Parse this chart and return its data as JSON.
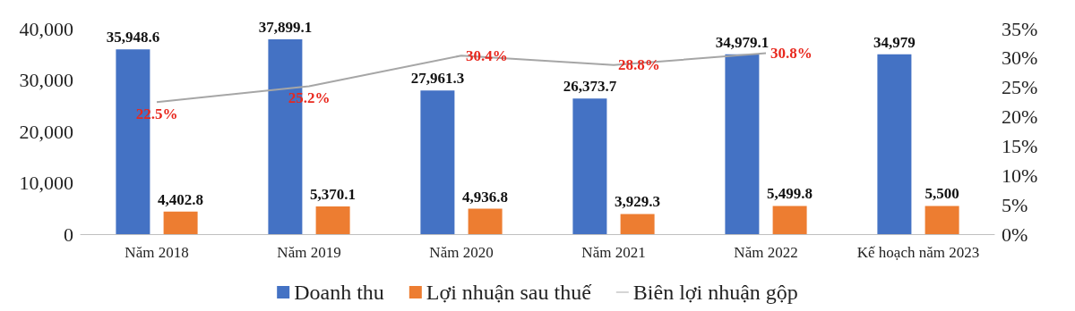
{
  "chart_data": {
    "type": "bar",
    "categories": [
      "Năm 2018",
      "Năm 2019",
      "Năm 2020",
      "Năm 2021",
      "Năm 2022",
      "Kế hoạch năm 2023"
    ],
    "series": [
      {
        "name": "Doanh thu",
        "color": "#4472c4",
        "values": [
          35948.6,
          37899.1,
          27961.3,
          26373.7,
          34979.1,
          34979
        ],
        "value_labels": [
          "35,948.6",
          "37,899.1",
          "27,961.3",
          "26,373.7",
          "34,979.1",
          "34,979"
        ]
      },
      {
        "name": "Lợi nhuận sau thuế",
        "color": "#ed7d31",
        "values": [
          4402.8,
          5370.1,
          4936.8,
          3929.3,
          5499.8,
          5500
        ],
        "value_labels": [
          "4,402.8",
          "5,370.1",
          "4,936.8",
          "3,929.3",
          "5,499.8",
          "5,500"
        ]
      },
      {
        "name": "Biên lợi nhuận gộp",
        "type": "line",
        "axis": "y2",
        "color": "#a6a6a6",
        "values": [
          22.5,
          25.2,
          30.4,
          28.8,
          30.8,
          null
        ],
        "value_labels": [
          "22.5%",
          "25.2%",
          "30.4%",
          "28.8%",
          "30.8%",
          null
        ]
      }
    ],
    "ylim": [
      0,
      40000
    ],
    "yticks": [
      0,
      {
        "value": 10000,
        "label": "10,000"
      },
      {
        "value": 20000,
        "label": "20,000"
      },
      {
        "value": 30000,
        "label": "30,000"
      },
      {
        "value": 40000,
        "label": "40,000"
      }
    ],
    "y2lim": [
      0,
      35
    ],
    "y2ticks": [
      {
        "value": 0,
        "label": "0%"
      },
      {
        "value": 5,
        "label": "5%"
      },
      {
        "value": 10,
        "label": "10%"
      },
      {
        "value": 15,
        "label": "15%"
      },
      {
        "value": 20,
        "label": "20%"
      },
      {
        "value": 25,
        "label": "25%"
      },
      {
        "value": 30,
        "label": "30%"
      },
      {
        "value": 35,
        "label": "35%"
      }
    ],
    "grid": false,
    "legend": "bottom",
    "marker": "none",
    "line_style": "solid"
  }
}
